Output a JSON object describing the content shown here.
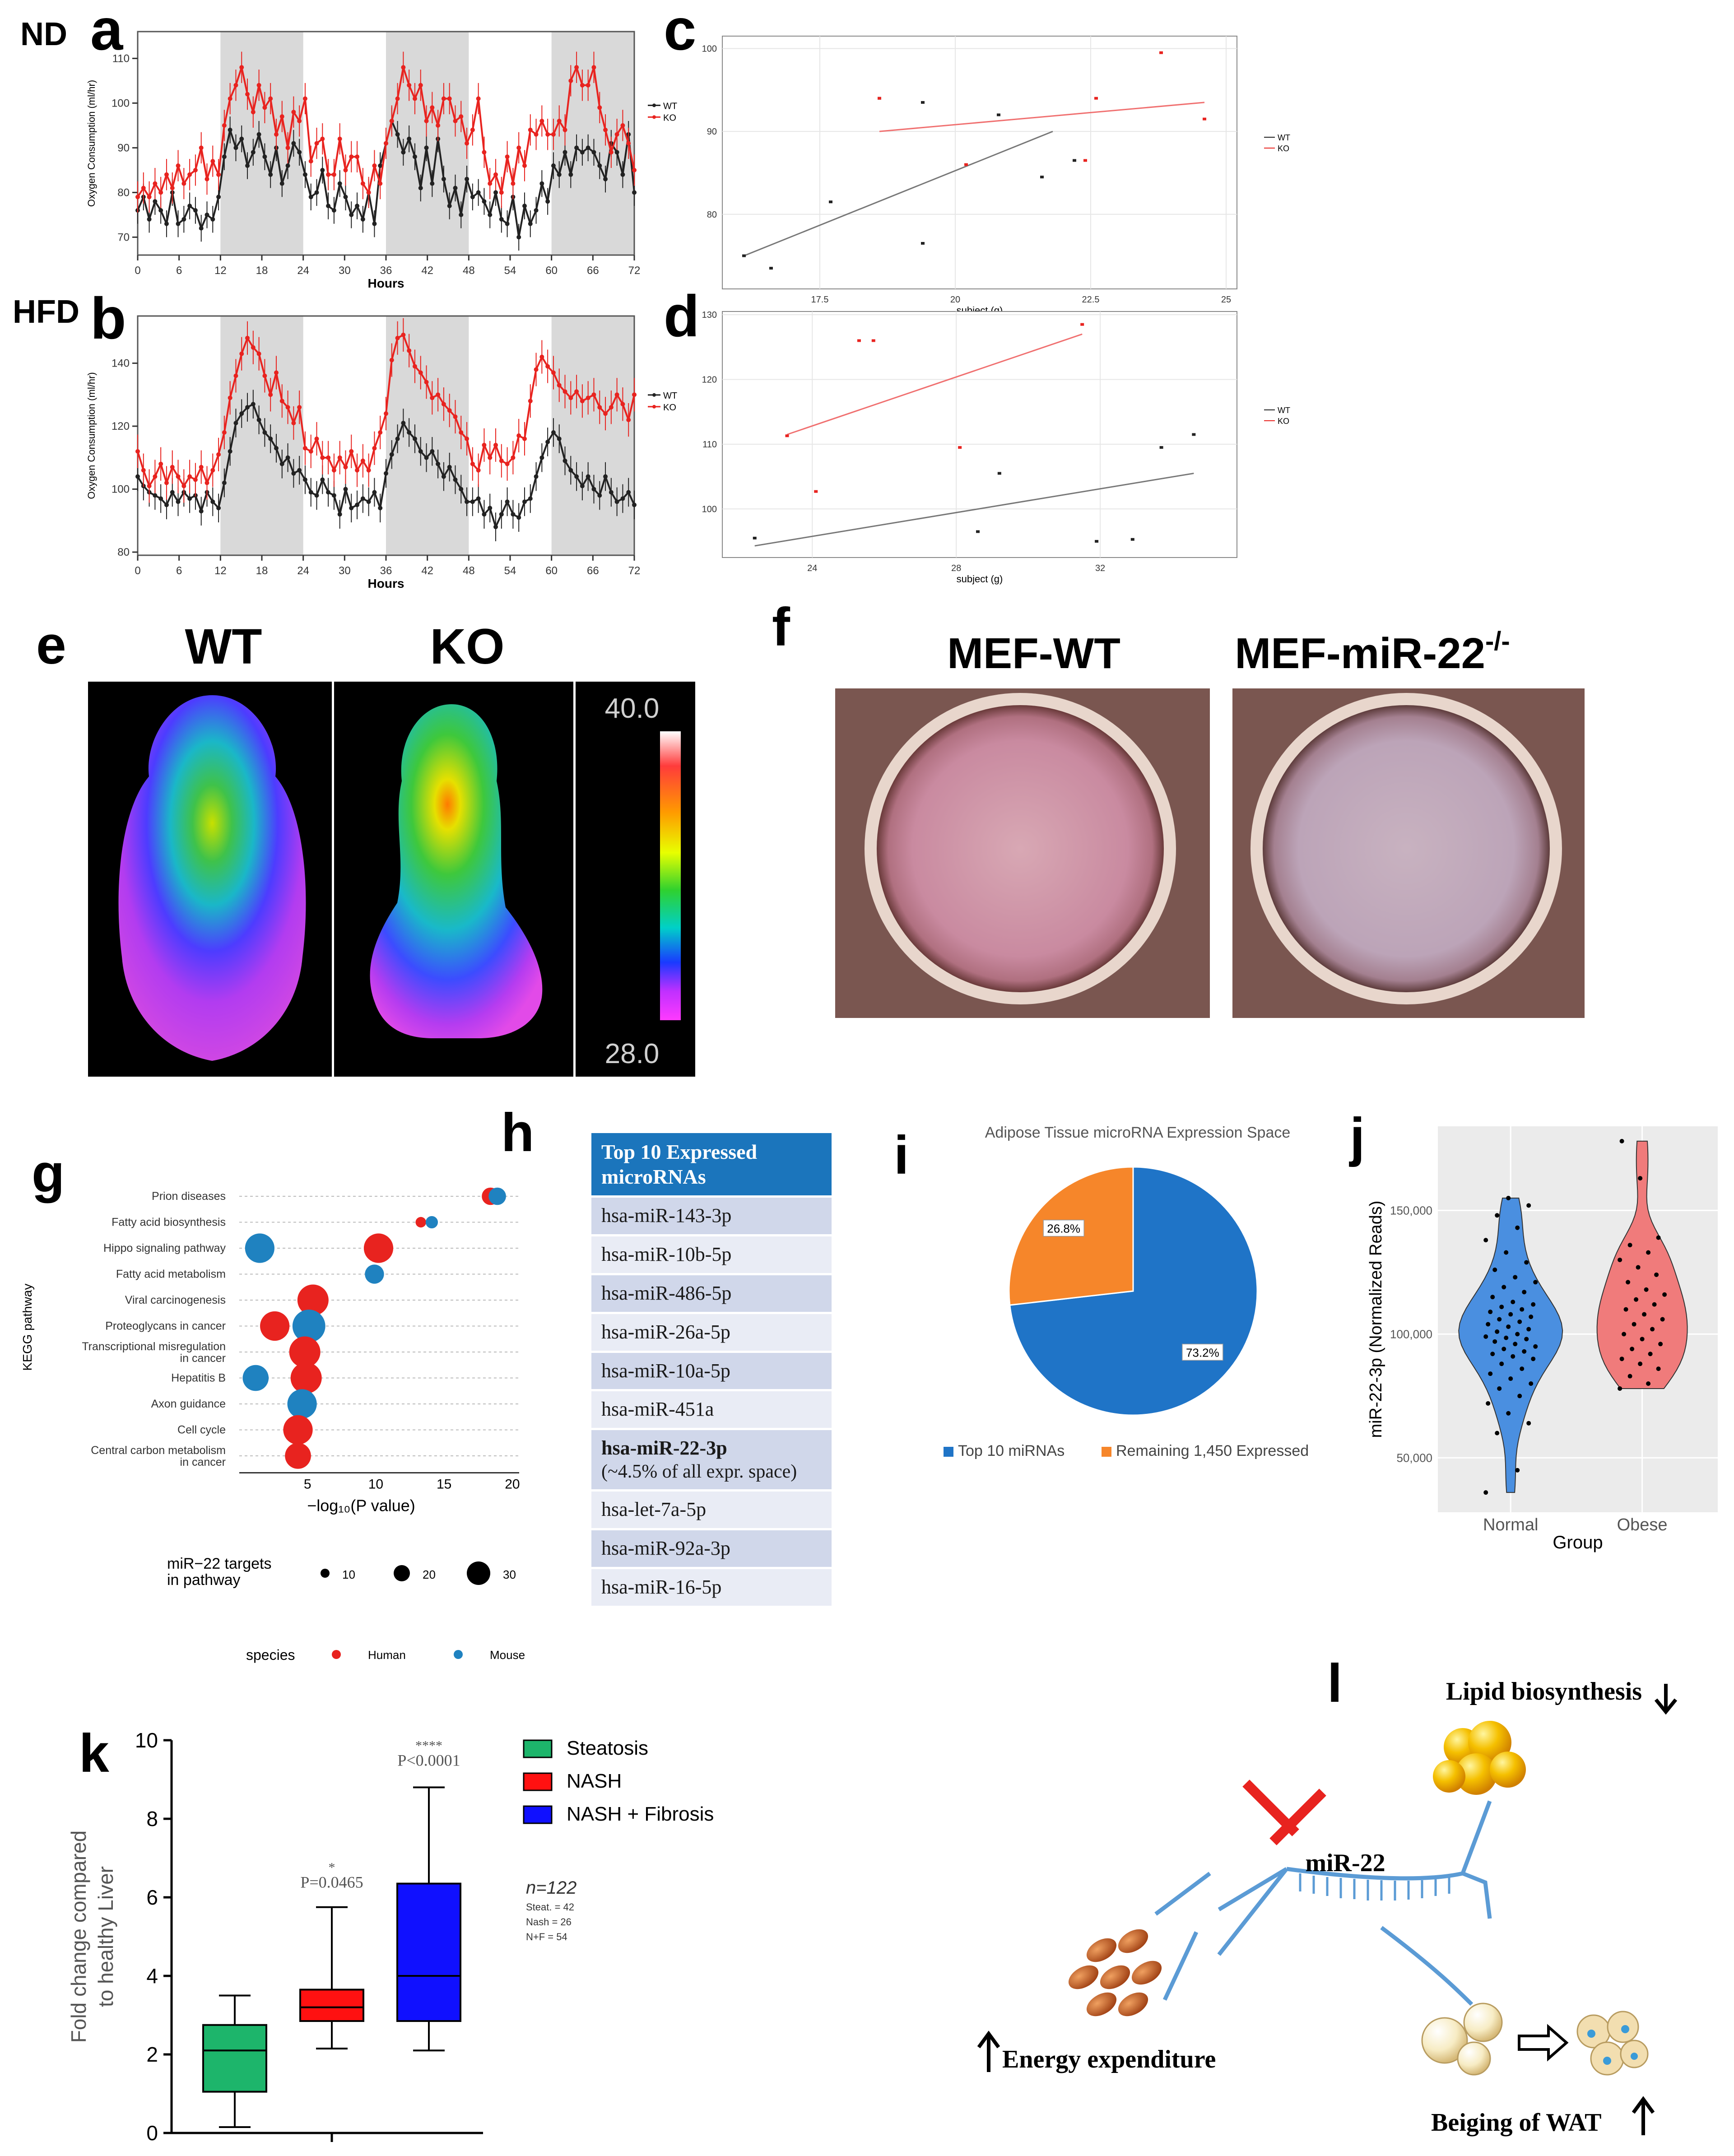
{
  "panel_labels": {
    "a": "a",
    "b": "b",
    "c": "c",
    "d": "d",
    "e": "e",
    "f": "f",
    "g": "g",
    "h": "h",
    "i": "i",
    "j": "j",
    "k": "k",
    "l": "l"
  },
  "row_labels": {
    "nd": "ND",
    "hfd": "HFD"
  },
  "colors": {
    "wt": "#222222",
    "ko": "#e8231f",
    "night_band": "#d9d9d9",
    "table_header": "#1b75bc",
    "human": "#e8231f",
    "mouse": "#1f82c0",
    "pie_blue": "#1f74c7",
    "pie_orange": "#f6862a",
    "violin_normal": "#4a8fe0",
    "violin_obese": "#f07b7b",
    "steatosis": "#1db56b",
    "nash": "#ff1111",
    "nash_fibrosis": "#1010ff"
  },
  "chart_data": [
    {
      "panel": "a",
      "type": "line",
      "xlabel": "Hours",
      "ylabel": "Oxygen Consumption (ml/hr)",
      "xticks": [
        0,
        6,
        12,
        18,
        24,
        30,
        36,
        42,
        48,
        54,
        60,
        66,
        72
      ],
      "yticks": [
        70,
        80,
        90,
        100,
        110
      ],
      "ylim": [
        66,
        116
      ],
      "dark_periods": [
        [
          12,
          24
        ],
        [
          36,
          48
        ],
        [
          60,
          72
        ]
      ],
      "legend": [
        "WT",
        "KO"
      ],
      "series": [
        {
          "name": "WT",
          "values": [
            76,
            79,
            74,
            78,
            76,
            73,
            80,
            73,
            74,
            77,
            76,
            72,
            75,
            74,
            79,
            88,
            94,
            90,
            92,
            86,
            89,
            93,
            88,
            84,
            90,
            82,
            86,
            91,
            89,
            84,
            79,
            80,
            85,
            77,
            76,
            82,
            79,
            75,
            77,
            74,
            80,
            73,
            86,
            91,
            96,
            93,
            89,
            92,
            88,
            81,
            90,
            82,
            92,
            83,
            77,
            81,
            75,
            83,
            79,
            80,
            78,
            75,
            80,
            74,
            73,
            79,
            70,
            77,
            73,
            76,
            82,
            78,
            86,
            84,
            89,
            84,
            90,
            89,
            90,
            89,
            86,
            83,
            91,
            89,
            84,
            93,
            80
          ]
        },
        {
          "name": "KO",
          "values": [
            79,
            81,
            79,
            82,
            80,
            84,
            81,
            86,
            82,
            84,
            85,
            90,
            83,
            87,
            84,
            95,
            101,
            104,
            108,
            102,
            98,
            104,
            99,
            101,
            93,
            97,
            90,
            98,
            96,
            101,
            87,
            91,
            92,
            84,
            84,
            92,
            85,
            88,
            88,
            82,
            80,
            86,
            82,
            91,
            96,
            101,
            108,
            104,
            101,
            104,
            96,
            99,
            95,
            101,
            101,
            96,
            97,
            91,
            94,
            101,
            89,
            82,
            84,
            80,
            88,
            82,
            90,
            86,
            94,
            93,
            96,
            93,
            93,
            96,
            94,
            105,
            108,
            104,
            104,
            108,
            99,
            94,
            89,
            93,
            95,
            91,
            85
          ]
        }
      ]
    },
    {
      "panel": "b",
      "type": "line",
      "xlabel": "Hours",
      "ylabel": "Oxygen Consumption (ml/hr)",
      "xticks": [
        0,
        6,
        12,
        18,
        24,
        30,
        36,
        42,
        48,
        54,
        60,
        66,
        72
      ],
      "yticks": [
        80,
        100,
        120,
        140
      ],
      "ylim": [
        79,
        155
      ],
      "dark_periods": [
        [
          12,
          24
        ],
        [
          36,
          48
        ],
        [
          60,
          72
        ]
      ],
      "legend": [
        "WT",
        "KO"
      ],
      "series": [
        {
          "name": "WT",
          "values": [
            104,
            101,
            99,
            98,
            97,
            95,
            99,
            96,
            99,
            97,
            98,
            93,
            99,
            96,
            94,
            102,
            112,
            121,
            124,
            126,
            127,
            122,
            118,
            116,
            113,
            108,
            110,
            105,
            106,
            103,
            99,
            98,
            103,
            99,
            98,
            92,
            100,
            94,
            95,
            97,
            96,
            99,
            94,
            105,
            111,
            116,
            121,
            118,
            116,
            112,
            110,
            112,
            108,
            104,
            107,
            103,
            100,
            96,
            96,
            97,
            92,
            94,
            88,
            92,
            96,
            92,
            91,
            96,
            97,
            104,
            110,
            115,
            118,
            116,
            109,
            106,
            104,
            101,
            104,
            100,
            98,
            104,
            99,
            96,
            97,
            99,
            95
          ]
        },
        {
          "name": "KO",
          "values": [
            112,
            106,
            101,
            104,
            108,
            102,
            107,
            104,
            101,
            104,
            103,
            107,
            102,
            106,
            111,
            118,
            129,
            136,
            143,
            148,
            145,
            143,
            136,
            130,
            137,
            128,
            126,
            121,
            126,
            113,
            112,
            116,
            110,
            110,
            106,
            110,
            107,
            112,
            106,
            109,
            106,
            113,
            118,
            124,
            141,
            148,
            149,
            144,
            139,
            137,
            134,
            129,
            130,
            127,
            125,
            123,
            118,
            116,
            108,
            106,
            114,
            110,
            114,
            109,
            108,
            110,
            117,
            116,
            128,
            138,
            142,
            139,
            137,
            133,
            131,
            129,
            131,
            128,
            129,
            130,
            126,
            124,
            126,
            130,
            127,
            122,
            130
          ]
        }
      ]
    },
    {
      "panel": "c",
      "type": "scatter",
      "xlabel": "subject (g)",
      "xticks": [
        17.5,
        20,
        22.5,
        25
      ],
      "yticks": [
        80,
        90,
        100
      ],
      "xlim": [
        15.7,
        25.2
      ],
      "ylim": [
        71,
        101.5
      ],
      "legend": [
        "WT",
        "KO"
      ],
      "series": [
        {
          "name": "WT",
          "points": [
            [
              16.1,
              75
            ],
            [
              16.6,
              73.5
            ],
            [
              17.7,
              81.5
            ],
            [
              18.6,
              94
            ],
            [
              19.4,
              93.5
            ],
            [
              19.4,
              76.5
            ],
            [
              20.8,
              92
            ],
            [
              21.6,
              84.5
            ],
            [
              22.2,
              86.5
            ]
          ],
          "fit": [
            [
              16.1,
              75
            ],
            [
              21.8,
              90
            ]
          ]
        },
        {
          "name": "KO",
          "points": [
            [
              18.6,
              94
            ],
            [
              20.2,
              86
            ],
            [
              22.4,
              86.5
            ],
            [
              22.6,
              94
            ],
            [
              23.8,
              99.5
            ],
            [
              24.6,
              91.5
            ]
          ],
          "fit": [
            [
              18.6,
              90
            ],
            [
              24.6,
              93.5
            ]
          ]
        }
      ]
    },
    {
      "panel": "d",
      "type": "scatter",
      "xlabel": "subject (g)",
      "xticks": [
        24,
        28,
        32
      ],
      "yticks": [
        100,
        110,
        120,
        130
      ],
      "xlim": [
        21.5,
        35.8
      ],
      "ylim": [
        92.5,
        130.5
      ],
      "legend": [
        "WT",
        "KO"
      ],
      "series": [
        {
          "name": "WT",
          "points": [
            [
              22.4,
              95.5
            ],
            [
              28.6,
              96.5
            ],
            [
              29.2,
              105.5
            ],
            [
              31.9,
              95
            ],
            [
              32.9,
              95.3
            ],
            [
              33.7,
              109.5
            ],
            [
              34.6,
              111.5
            ]
          ],
          "fit": [
            [
              22.4,
              94.3
            ],
            [
              34.6,
              105.5
            ]
          ]
        },
        {
          "name": "KO",
          "points": [
            [
              23.3,
              111.3
            ],
            [
              24.1,
              102.7
            ],
            [
              25.3,
              126
            ],
            [
              25.7,
              126
            ],
            [
              28.1,
              109.5
            ],
            [
              31.5,
              128.5
            ]
          ],
          "fit": [
            [
              23.3,
              111.5
            ],
            [
              31.5,
              127
            ]
          ]
        }
      ]
    },
    {
      "panel": "g",
      "type": "scatter",
      "title": "",
      "xlabel": "−log₁₀(P value)",
      "ylabel": "KEGG pathway",
      "xticks": [
        5,
        10,
        15,
        20
      ],
      "xlim": [
        0,
        20.5
      ],
      "categories": [
        "Prion diseases",
        "Fatty acid biosynthesis",
        "Hippo signaling pathway",
        "Fatty acid metabolism",
        "Viral carcinogenesis",
        "Proteoglycans in cancer",
        "Transcriptional misregulation in cancer",
        "Hepatitis B",
        "Axon guidance",
        "Cell cycle",
        "Central carbon metabolism in cancer"
      ],
      "points": [
        {
          "pathway": "Prion diseases",
          "species": "Human",
          "x": 18.4,
          "genes": 14
        },
        {
          "pathway": "Prion diseases",
          "species": "Mouse",
          "x": 18.9,
          "genes": 14
        },
        {
          "pathway": "Fatty acid biosynthesis",
          "species": "Human",
          "x": 13.3,
          "genes": 6
        },
        {
          "pathway": "Fatty acid biosynthesis",
          "species": "Mouse",
          "x": 14.1,
          "genes": 8
        },
        {
          "pathway": "Hippo signaling pathway",
          "species": "Mouse",
          "x": 1.5,
          "genes": 28
        },
        {
          "pathway": "Hippo signaling pathway",
          "species": "Human",
          "x": 10.2,
          "genes": 28
        },
        {
          "pathway": "Fatty acid metabolism",
          "species": "Mouse",
          "x": 9.9,
          "genes": 16
        },
        {
          "pathway": "Viral carcinogenesis",
          "species": "Human",
          "x": 5.4,
          "genes": 30
        },
        {
          "pathway": "Proteoglycans in cancer",
          "species": "Human",
          "x": 2.6,
          "genes": 28
        },
        {
          "pathway": "Proteoglycans in cancer",
          "species": "Mouse",
          "x": 5.1,
          "genes": 32
        },
        {
          "pathway": "Transcriptional misregulation in cancer",
          "species": "Human",
          "x": 4.8,
          "genes": 30
        },
        {
          "pathway": "Hepatitis B",
          "species": "Mouse",
          "x": 1.2,
          "genes": 24
        },
        {
          "pathway": "Hepatitis B",
          "species": "Human",
          "x": 4.9,
          "genes": 30
        },
        {
          "pathway": "Axon guidance",
          "species": "Mouse",
          "x": 4.6,
          "genes": 28
        },
        {
          "pathway": "Cell cycle",
          "species": "Human",
          "x": 4.3,
          "genes": 28
        },
        {
          "pathway": "Central carbon metabolism in cancer",
          "species": "Human",
          "x": 4.3,
          "genes": 24
        }
      ],
      "size_legend": {
        "title": "miR−22 targets in pathway",
        "values": [
          "10",
          "20",
          "30"
        ]
      },
      "color_legend": {
        "title": "species",
        "values": [
          "Human",
          "Mouse"
        ]
      }
    },
    {
      "panel": "i",
      "type": "pie",
      "title": "Adipose Tissue microRNA Expression Space",
      "slices": [
        {
          "label": "Top 10 miRNAs",
          "value": 73.2,
          "text": "73.2%"
        },
        {
          "label": "Remaining 1,450 Expressed",
          "value": 26.8,
          "text": "26.8%"
        }
      ]
    },
    {
      "panel": "j",
      "type": "violin",
      "xlabel": "Group",
      "ylabel": "miR-22-3p (Normalized Reads)",
      "categories": [
        "Normal",
        "Obese"
      ],
      "yticks": [
        50000,
        100000,
        150000
      ],
      "ytick_labels": [
        "50,000",
        "100,000",
        "150,000"
      ],
      "ylim": [
        28000,
        184000
      ],
      "groups": [
        {
          "name": "Normal",
          "min": 36000,
          "max": 155000,
          "points": [
            36000,
            45000,
            60000,
            64000,
            68000,
            72000,
            75000,
            78000,
            80000,
            82000,
            84000,
            86000,
            88000,
            90000,
            91000,
            92000,
            93000,
            94000,
            95000,
            96000,
            97000,
            98000,
            98500,
            99000,
            100000,
            101000,
            102000,
            103000,
            104000,
            105000,
            106000,
            107000,
            108000,
            109000,
            110000,
            111000,
            112000,
            113000,
            115000,
            117000,
            119000,
            121000,
            123000,
            126000,
            129000,
            133000,
            138000,
            143000,
            148000,
            152000,
            155000
          ]
        },
        {
          "name": "Obese",
          "min": 78000,
          "max": 178000,
          "points": [
            78000,
            80000,
            83000,
            86000,
            88000,
            90000,
            92000,
            94000,
            96000,
            98000,
            100000,
            102000,
            104000,
            106000,
            108000,
            110000,
            112000,
            114000,
            116000,
            118000,
            121000,
            124000,
            127000,
            130000,
            133000,
            136000,
            139000,
            163000,
            178000
          ]
        }
      ]
    },
    {
      "panel": "k",
      "type": "box",
      "ylabel": "Fold change compared to healthy Liver",
      "yticks": [
        0,
        2,
        4,
        6,
        8,
        10
      ],
      "ylim": [
        0,
        10
      ],
      "groups": [
        {
          "name": "Steatosis",
          "min": 0.15,
          "q1": 1.05,
          "median": 2.1,
          "q3": 2.75,
          "max": 3.5
        },
        {
          "name": "NASH",
          "min": 2.15,
          "q1": 2.85,
          "median": 3.2,
          "q3": 3.65,
          "max": 5.75
        },
        {
          "name": "NASH + Fibrosis",
          "min": 2.1,
          "q1": 2.85,
          "median": 4.0,
          "q3": 6.35,
          "max": 8.8
        }
      ],
      "annotations": [
        {
          "star": "*",
          "p": "P=0.0465"
        },
        {
          "star": "****",
          "p": "P<0.0001"
        }
      ],
      "n_text": "n=122",
      "counts": [
        "Steat. = 42",
        "Nash = 26",
        "N+F = 54"
      ]
    }
  ],
  "panel_e": {
    "wt": "WT",
    "ko": "KO",
    "scale_max": "40.0",
    "scale_min": "28.0"
  },
  "panel_f": {
    "wt": "MEF-WT",
    "ko_prefix": "MEF-miR-22",
    "ko_sup": "-/-"
  },
  "panel_h": {
    "header": "Top 10 Expressed microRNAs",
    "rows": [
      "hsa-miR-143-3p",
      "hsa-miR-10b-5p",
      "hsa-miR-486-5p",
      "hsa-miR-26a-5p",
      "hsa-miR-10a-5p",
      "hsa-miR-451a",
      "hsa-let-7a-5p",
      "hsa-miR-92a-3p",
      "hsa-miR-16-5p"
    ],
    "highlight": "hsa-miR-22-3p",
    "highlight_note": "(~4.5% of all expr. space)"
  },
  "panel_l": {
    "mir": "miR-22",
    "lipid": "Lipid biosynthesis",
    "energy": "Energy expenditure",
    "beiging": "Beiging of WAT"
  }
}
